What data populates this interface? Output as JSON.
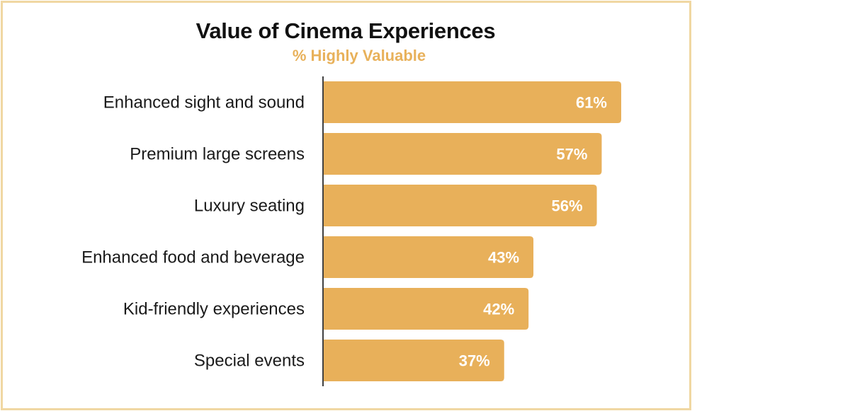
{
  "chart_data": {
    "type": "bar",
    "orientation": "horizontal",
    "title": "Value of Cinema Experiences",
    "subtitle": "% Highly Valuable",
    "categories": [
      "Enhanced sight and sound",
      "Premium large screens",
      "Luxury seating",
      "Enhanced food and beverage",
      "Kid-friendly experiences",
      "Special events"
    ],
    "values": [
      61,
      57,
      56,
      43,
      42,
      37
    ],
    "value_labels": [
      "61%",
      "57%",
      "56%",
      "43%",
      "42%",
      "37%"
    ],
    "unit": "%",
    "xlim": [
      0,
      100
    ],
    "grid": false,
    "legend": "none",
    "colors": {
      "bar": "#E8B05A",
      "value_label": "#FFFFFF",
      "subtitle": "#E8B15A",
      "border": "#F0D7A2",
      "axis": "#111111"
    }
  }
}
